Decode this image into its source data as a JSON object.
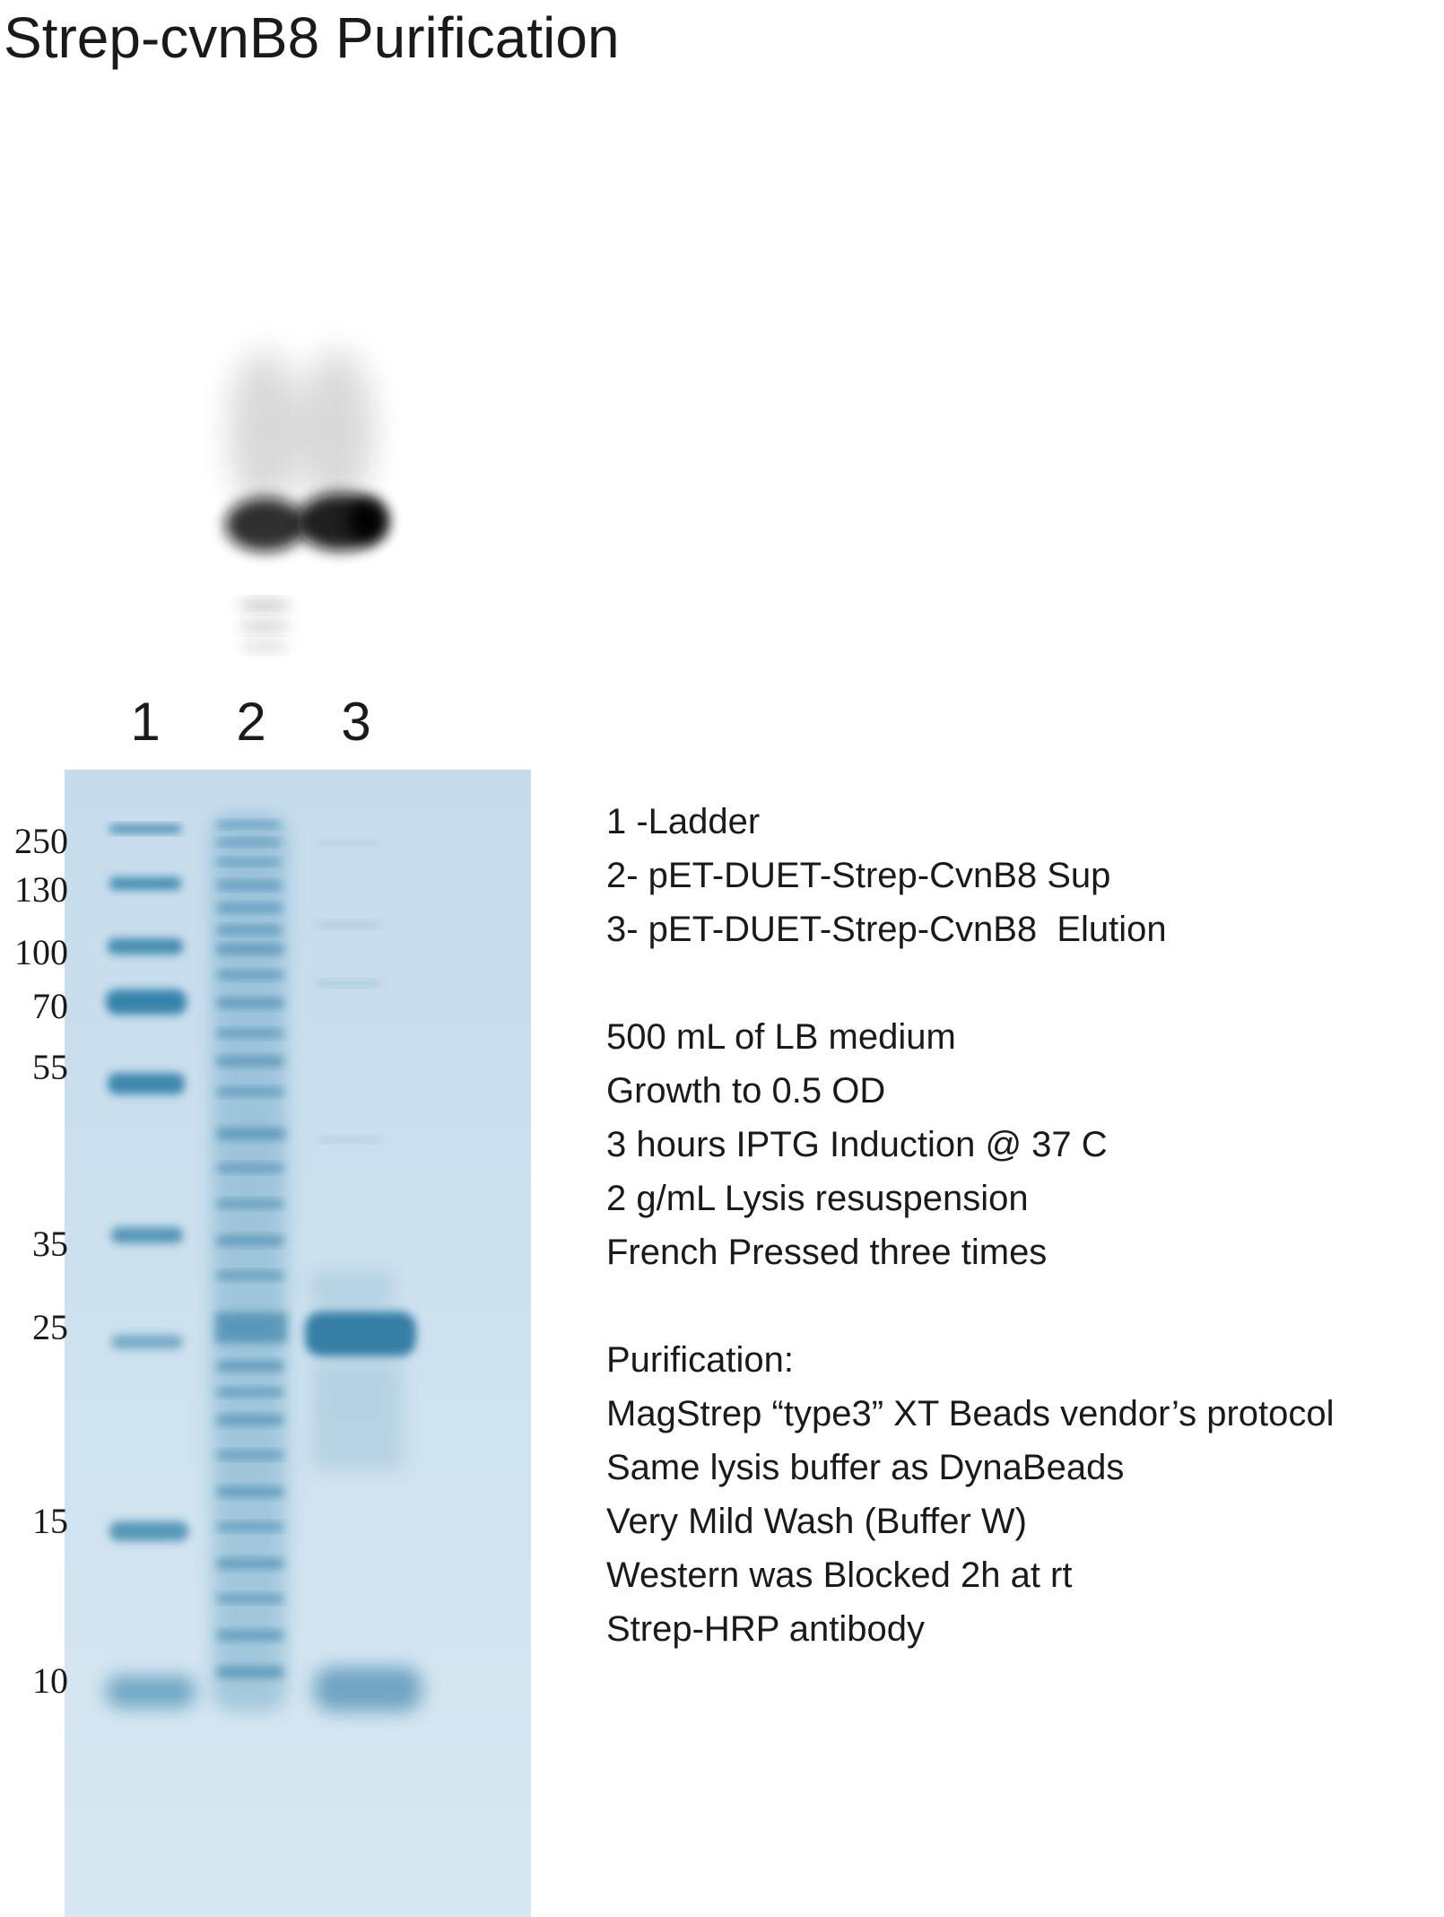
{
  "title": "Strep-cvnB8 Purification",
  "lanes": [
    "1",
    "2",
    "3"
  ],
  "marker_weights": [
    "250",
    "130",
    "100",
    "70",
    "55",
    "35",
    "25",
    "15",
    "10"
  ],
  "legend": [
    "1 -Ladder",
    "2- pET-DUET-Strep-CvnB8 Sup",
    "3- pET-DUET-Strep-CvnB8  Elution"
  ],
  "conditions": [
    "500 mL of LB medium",
    "Growth to 0.5 OD",
    "3 hours IPTG Induction @ 37 C",
    "2 g/mL Lysis resuspension",
    "French Pressed three times"
  ],
  "purification": {
    "heading": "Purification:",
    "steps": [
      "MagStrep “type3” XT Beads vendor’s protocol",
      "Same lysis buffer as DynaBeads",
      "Very Mild Wash (Buffer W)",
      "Western was Blocked 2h at rt",
      "Strep-HRP antibody"
    ]
  },
  "colors": {
    "gel_background": "#cfe2ef",
    "band": "#2f7fa6",
    "western_band": "#0d0d0d"
  }
}
